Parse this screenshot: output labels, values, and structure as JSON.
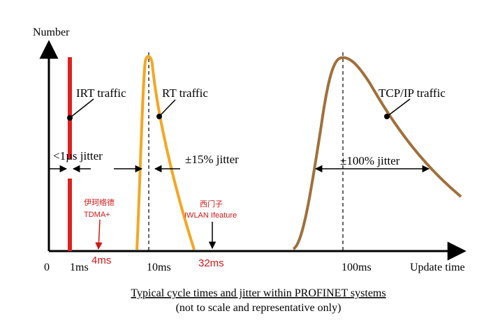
{
  "axes": {
    "y_label": "Number",
    "x_label": "Update time",
    "origin_label": "0"
  },
  "ticks": {
    "t1": "1ms",
    "t10": "10ms",
    "t100": "100ms"
  },
  "annotations": {
    "irt_traffic": "IRT traffic",
    "rt_traffic": "RT traffic",
    "tcp_traffic": "TCP/IP traffic",
    "irt_jitter": "<1µs jitter",
    "rt_jitter": "±15% jitter",
    "tcp_jitter": "±100% jitter"
  },
  "red_notes": {
    "tdma_line1": "伊珂络德",
    "tdma_line2": "TDMA+",
    "tdma_value": "4ms",
    "iwlan_line1": "西门子",
    "iwlan_line2": "IWLAN Ifeature",
    "iwlan_value": "32ms"
  },
  "caption": {
    "line1": "Typical cycle times and jitter within PROFINET systems",
    "line2": "(not to scale and representative only)"
  },
  "colors": {
    "irt": "#e02020",
    "rt": "#f5a623",
    "tcp": "#a0703a",
    "note": "#e02020",
    "axis": "#000000"
  }
}
